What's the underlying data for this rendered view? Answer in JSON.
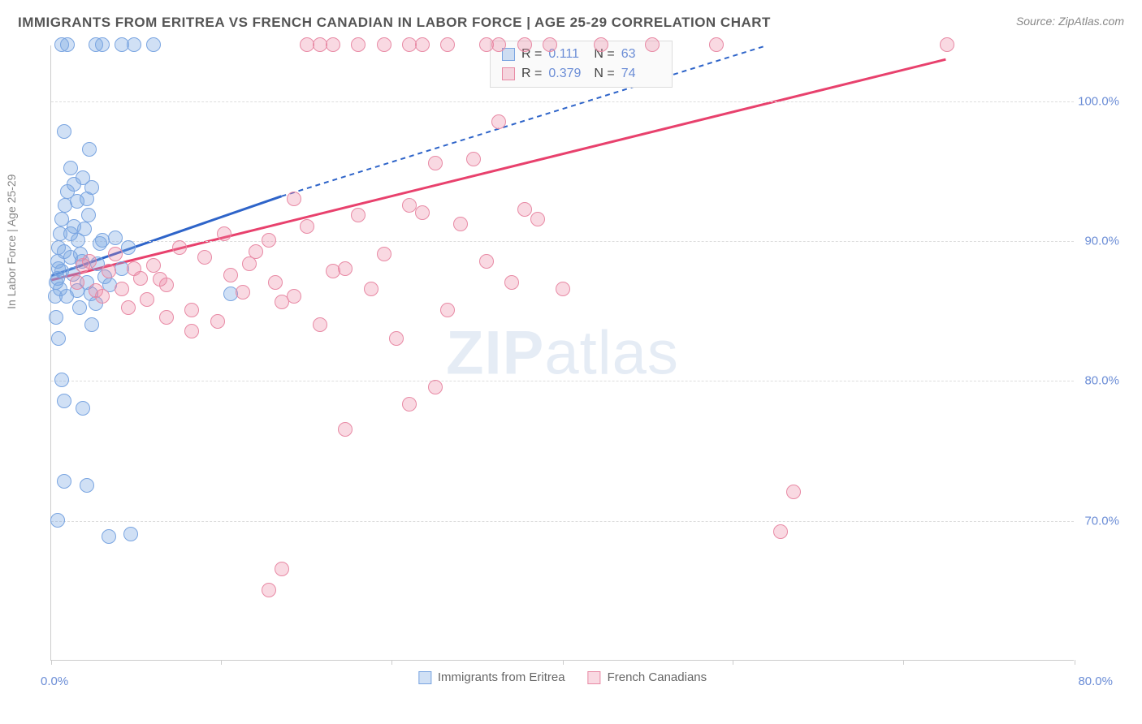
{
  "title": "IMMIGRANTS FROM ERITREA VS FRENCH CANADIAN IN LABOR FORCE | AGE 25-29 CORRELATION CHART",
  "source": "Source: ZipAtlas.com",
  "watermark_bold": "ZIP",
  "watermark_rest": "atlas",
  "chart": {
    "type": "scatter",
    "ylabel": "In Labor Force | Age 25-29",
    "xlim": [
      0,
      80
    ],
    "ylim": [
      60,
      104
    ],
    "y_ticks": [
      70,
      80,
      90,
      100
    ],
    "y_tick_labels": [
      "70.0%",
      "80.0%",
      "90.0%",
      "100.0%"
    ],
    "x_ticks": [
      0,
      13.3,
      26.6,
      40,
      53.3,
      66.6,
      80
    ],
    "x_left_label": "0.0%",
    "x_right_label": "80.0%",
    "grid_color": "#dddddd",
    "background_color": "#ffffff",
    "point_radius": 9,
    "series": [
      {
        "name": "Immigrants from Eritrea",
        "fill_color": "rgba(120,165,225,0.35)",
        "stroke_color": "#7aa5e1",
        "trend_color": "#2e64c9",
        "trend_dash_color": "#2e64c9",
        "R": "0.111",
        "N": "63",
        "trend": {
          "x1": 0,
          "y1": 87.5,
          "x2": 18,
          "y2": 93.2,
          "x2_dash": 56,
          "y2_dash": 104
        },
        "points": [
          [
            0.5,
            87.3
          ],
          [
            0.6,
            88.0
          ],
          [
            0.7,
            86.5
          ],
          [
            0.8,
            87.8
          ],
          [
            1.0,
            89.2
          ],
          [
            1.2,
            86.0
          ],
          [
            1.5,
            90.5
          ],
          [
            1.8,
            91.0
          ],
          [
            2.0,
            92.8
          ],
          [
            2.2,
            85.2
          ],
          [
            2.5,
            94.5
          ],
          [
            2.8,
            93.0
          ],
          [
            3.0,
            96.5
          ],
          [
            3.2,
            84.0
          ],
          [
            3.5,
            104.0
          ],
          [
            0.8,
            104.0
          ],
          [
            1.3,
            104.0
          ],
          [
            4.0,
            104.0
          ],
          [
            5.5,
            104.0
          ],
          [
            6.5,
            104.0
          ],
          [
            8.0,
            104.0
          ],
          [
            1.0,
            97.8
          ],
          [
            1.5,
            95.2
          ],
          [
            1.8,
            94.0
          ],
          [
            2.1,
            90.0
          ],
          [
            2.4,
            88.5
          ],
          [
            2.8,
            87.0
          ],
          [
            3.1,
            86.2
          ],
          [
            3.5,
            85.5
          ],
          [
            3.8,
            89.8
          ],
          [
            4.2,
            87.4
          ],
          [
            4.6,
            86.8
          ],
          [
            5.0,
            90.2
          ],
          [
            5.5,
            88.0
          ],
          [
            6.0,
            89.5
          ],
          [
            0.4,
            84.5
          ],
          [
            0.6,
            83.0
          ],
          [
            0.8,
            80.0
          ],
          [
            1.0,
            78.5
          ],
          [
            2.5,
            78.0
          ],
          [
            2.8,
            72.5
          ],
          [
            1.0,
            72.8
          ],
          [
            0.5,
            70.0
          ],
          [
            4.5,
            68.8
          ],
          [
            6.2,
            69.0
          ],
          [
            14.0,
            86.2
          ],
          [
            0.3,
            86.0
          ],
          [
            0.4,
            87.0
          ],
          [
            0.5,
            88.5
          ],
          [
            0.6,
            89.5
          ],
          [
            0.7,
            90.5
          ],
          [
            0.8,
            91.5
          ],
          [
            1.1,
            92.5
          ],
          [
            1.3,
            93.5
          ],
          [
            1.5,
            88.8
          ],
          [
            1.7,
            87.6
          ],
          [
            2.0,
            86.4
          ],
          [
            2.3,
            89.0
          ],
          [
            2.6,
            90.8
          ],
          [
            2.9,
            91.8
          ],
          [
            3.2,
            93.8
          ],
          [
            3.6,
            88.3
          ],
          [
            4.0,
            90.0
          ]
        ]
      },
      {
        "name": "French Canadians",
        "fill_color": "rgba(235,130,160,0.30)",
        "stroke_color": "#e88aa5",
        "trend_color": "#e8416d",
        "trend_dash_color": "#e8416d",
        "R": "0.379",
        "N": "74",
        "trend": {
          "x1": 0,
          "y1": 87.2,
          "x2": 70,
          "y2": 103.0,
          "x2_dash": 70,
          "y2_dash": 103.0
        },
        "points": [
          [
            2.0,
            87.0
          ],
          [
            3.0,
            88.5
          ],
          [
            4.0,
            86.0
          ],
          [
            5.0,
            89.0
          ],
          [
            6.0,
            85.2
          ],
          [
            7.0,
            87.3
          ],
          [
            8.0,
            88.2
          ],
          [
            9.0,
            86.8
          ],
          [
            10.0,
            89.5
          ],
          [
            11.0,
            85.0
          ],
          [
            12.0,
            88.8
          ],
          [
            13.0,
            84.2
          ],
          [
            14.0,
            87.5
          ],
          [
            15.0,
            86.3
          ],
          [
            16.0,
            89.2
          ],
          [
            17.0,
            90.0
          ],
          [
            18.0,
            85.6
          ],
          [
            19.0,
            93.0
          ],
          [
            20.0,
            91.0
          ],
          [
            21.0,
            84.0
          ],
          [
            22.0,
            87.8
          ],
          [
            24.0,
            91.8
          ],
          [
            26.0,
            89.0
          ],
          [
            28.0,
            92.5
          ],
          [
            30.0,
            95.5
          ],
          [
            32.0,
            91.2
          ],
          [
            34.0,
            88.5
          ],
          [
            36.0,
            87.0
          ],
          [
            38.0,
            91.5
          ],
          [
            24.0,
            104.0
          ],
          [
            26.0,
            104.0
          ],
          [
            28.0,
            104.0
          ],
          [
            29.0,
            104.0
          ],
          [
            31.0,
            104.0
          ],
          [
            34.0,
            104.0
          ],
          [
            35.0,
            104.0
          ],
          [
            37.0,
            104.0
          ],
          [
            39.0,
            104.0
          ],
          [
            43.0,
            104.0
          ],
          [
            47.0,
            104.0
          ],
          [
            52.0,
            104.0
          ],
          [
            70.0,
            104.0
          ],
          [
            18.0,
            66.5
          ],
          [
            17.0,
            65.0
          ],
          [
            23.0,
            76.5
          ],
          [
            28.0,
            78.3
          ],
          [
            58.0,
            72.0
          ],
          [
            57.0,
            69.2
          ],
          [
            40.0,
            86.5
          ],
          [
            35.0,
            98.5
          ],
          [
            30.0,
            79.5
          ],
          [
            27.0,
            83.0
          ],
          [
            20.0,
            104.0
          ],
          [
            21.0,
            104.0
          ],
          [
            22.0,
            104.0
          ],
          [
            33.0,
            95.8
          ],
          [
            29.0,
            92.0
          ],
          [
            25.0,
            86.5
          ],
          [
            23.0,
            88.0
          ],
          [
            19.0,
            86.0
          ],
          [
            31.0,
            85.0
          ],
          [
            37.0,
            92.2
          ],
          [
            9.0,
            84.5
          ],
          [
            11.0,
            83.5
          ],
          [
            5.5,
            86.5
          ],
          [
            6.5,
            88.0
          ],
          [
            7.5,
            85.8
          ],
          [
            8.5,
            87.2
          ],
          [
            4.5,
            87.8
          ],
          [
            3.5,
            86.4
          ],
          [
            2.5,
            88.2
          ],
          [
            13.5,
            90.5
          ],
          [
            15.5,
            88.3
          ],
          [
            17.5,
            87.0
          ]
        ]
      }
    ],
    "stats_legend": {
      "rows": [
        {
          "swatch_fill": "rgba(120,165,225,0.35)",
          "swatch_stroke": "#7aa5e1",
          "R_label": "R =",
          "R": "0.111",
          "N_label": "N =",
          "N": "63"
        },
        {
          "swatch_fill": "rgba(235,130,160,0.30)",
          "swatch_stroke": "#e88aa5",
          "R_label": "R =",
          "R": "0.379",
          "N_label": "N =",
          "N": "74"
        }
      ]
    },
    "bottom_legend": [
      {
        "swatch_fill": "rgba(120,165,225,0.35)",
        "swatch_stroke": "#7aa5e1",
        "label": "Immigrants from Eritrea"
      },
      {
        "swatch_fill": "rgba(235,130,160,0.30)",
        "swatch_stroke": "#e88aa5",
        "label": "French Canadians"
      }
    ]
  }
}
